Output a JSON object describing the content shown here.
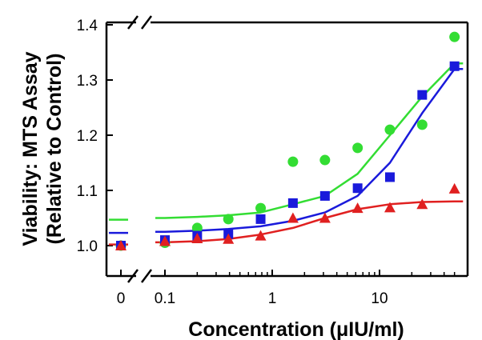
{
  "chart_data": {
    "type": "scatter",
    "xlabel": "Concentration (μIU/ml)",
    "ylabel_line1": "Viability: MTS Assay",
    "ylabel_line2": "(Relative to Control)",
    "x_scale": "log",
    "x_axis_break": true,
    "y_axis_break": true,
    "grid": false,
    "legend": "none",
    "xlim": [
      0.05,
      60
    ],
    "ylim": [
      0.95,
      1.4
    ],
    "x_ticks": [
      {
        "value": 0,
        "label": "0"
      },
      {
        "value": 0.1,
        "label": "0.1"
      },
      {
        "value": 1,
        "label": "1"
      },
      {
        "value": 10,
        "label": "10"
      }
    ],
    "y_ticks": [
      {
        "value": 1.0,
        "label": "1.0"
      },
      {
        "value": 1.1,
        "label": "1.1"
      },
      {
        "value": 1.2,
        "label": "1.2"
      },
      {
        "value": 1.3,
        "label": "1.3"
      },
      {
        "value": 1.4,
        "label": "1.4"
      }
    ],
    "series": [
      {
        "marker": "circle",
        "color": "#33dd33",
        "x": [
          0,
          0.1,
          0.2,
          0.39,
          0.78,
          1.56,
          3.1,
          6.25,
          12.5,
          25,
          50
        ],
        "y": [
          1.0,
          1.005,
          1.032,
          1.048,
          1.068,
          1.152,
          1.155,
          1.177,
          1.21,
          1.219,
          1.378
        ],
        "fit_y0": 1.047,
        "fit_y": [
          1.05,
          1.05,
          1.052,
          1.055,
          1.06,
          1.075,
          1.09,
          1.13,
          1.2,
          1.27,
          1.33
        ]
      },
      {
        "marker": "square",
        "color": "#1a1adb",
        "x": [
          0,
          0.1,
          0.2,
          0.39,
          0.78,
          1.56,
          3.1,
          6.25,
          12.5,
          25,
          50
        ],
        "y": [
          1.0,
          1.01,
          1.018,
          1.021,
          1.048,
          1.077,
          1.09,
          1.104,
          1.124,
          1.273,
          1.325
        ],
        "fit_y0": 1.023,
        "fit_y": [
          1.025,
          1.025,
          1.027,
          1.03,
          1.035,
          1.045,
          1.06,
          1.09,
          1.15,
          1.24,
          1.32
        ]
      },
      {
        "marker": "triangle",
        "color": "#e02020",
        "x": [
          0,
          0.1,
          0.2,
          0.39,
          0.78,
          1.56,
          3.1,
          6.25,
          12.5,
          25,
          50
        ],
        "y": [
          1.0,
          1.008,
          1.013,
          1.012,
          1.018,
          1.05,
          1.05,
          1.068,
          1.069,
          1.075,
          1.103
        ],
        "fit_y0": 1.002,
        "fit_y": [
          1.005,
          1.006,
          1.008,
          1.012,
          1.02,
          1.032,
          1.05,
          1.066,
          1.075,
          1.079,
          1.08
        ]
      }
    ]
  }
}
